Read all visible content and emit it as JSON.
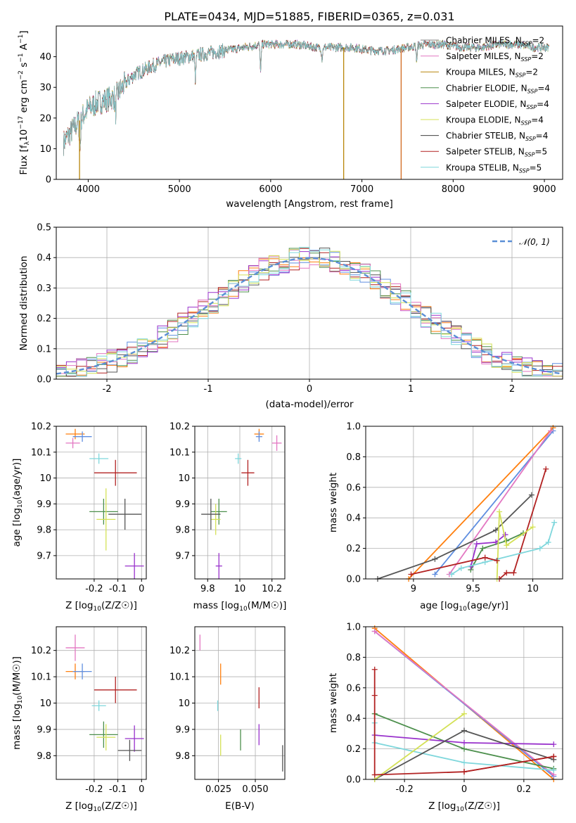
{
  "figure": {
    "title": "PLATE=0434, MJD=51885, FIBERID=0365, z=0.031"
  },
  "colors": [
    "#4f4f4f",
    "#e377c2",
    "#d2691e",
    "#4c8f4c",
    "#9932cc",
    "#d4e157",
    "#555555",
    "#b22222",
    "#7fd7dc",
    "#5f8ee0",
    "#ff7f0e"
  ],
  "legend_spectrum": [
    {
      "pre": "Chabrier MILES, N",
      "sub": "SSP",
      "post": "=2",
      "color": "#808080"
    },
    {
      "pre": "Salpeter MILES, N",
      "sub": "SSP",
      "post": "=2",
      "color": "#e377c2"
    },
    {
      "pre": "Kroupa MILES, N",
      "sub": "SSP",
      "post": "=2",
      "color": "#b8860b"
    },
    {
      "pre": "Chabrier ELODIE, N",
      "sub": "SSP",
      "post": "=4",
      "color": "#4c8f4c"
    },
    {
      "pre": "Salpeter ELODIE, N",
      "sub": "SSP",
      "post": "=4",
      "color": "#9932cc"
    },
    {
      "pre": "Kroupa ELODIE, N",
      "sub": "SSP",
      "post": "=4",
      "color": "#d4e157"
    },
    {
      "pre": "Chabrier STELIB, N",
      "sub": "SSP",
      "post": "=4",
      "color": "#404040"
    },
    {
      "pre": "Salpeter STELIB, N",
      "sub": "SSP",
      "post": "=5",
      "color": "#b22222"
    },
    {
      "pre": "Kroupa STELIB, N",
      "sub": "SSP",
      "post": "=5",
      "color": "#7fd7dc"
    }
  ],
  "legend_hist": {
    "label": "𝒩(0, 1)",
    "color": "#5b8fd6"
  },
  "chart_data": [
    {
      "id": "spectrum",
      "type": "line",
      "xlabel": "wavelength [Angstrom, rest frame]",
      "ylabel": "Flux [f_λ 10^-17 erg cm^-2 s^-1 A^-1]",
      "xlim": [
        3650,
        9200
      ],
      "ylim": [
        0,
        50
      ],
      "xticks": [
        4000,
        5000,
        6000,
        7000,
        8000,
        9000
      ],
      "yticks": [
        0,
        10,
        20,
        30,
        40
      ],
      "continuum": [
        [
          3730,
          12
        ],
        [
          3800,
          15
        ],
        [
          3900,
          19
        ],
        [
          4000,
          23
        ],
        [
          4100,
          25
        ],
        [
          4200,
          26
        ],
        [
          4300,
          27
        ],
        [
          4400,
          31
        ],
        [
          4500,
          34
        ],
        [
          4700,
          37
        ],
        [
          4900,
          39
        ],
        [
          5100,
          40
        ],
        [
          5300,
          41
        ],
        [
          5500,
          42
        ],
        [
          5700,
          43
        ],
        [
          5900,
          44
        ],
        [
          6100,
          44
        ],
        [
          6300,
          44
        ],
        [
          6500,
          43
        ],
        [
          6700,
          43
        ],
        [
          6900,
          43
        ],
        [
          7100,
          42
        ],
        [
          7300,
          42
        ],
        [
          7500,
          43
        ],
        [
          7700,
          44
        ],
        [
          7900,
          44
        ],
        [
          8100,
          43
        ],
        [
          8300,
          43
        ],
        [
          8500,
          44
        ],
        [
          8700,
          44
        ],
        [
          8900,
          43
        ],
        [
          9050,
          43
        ]
      ],
      "dips": [
        [
          3910,
          10
        ],
        [
          4300,
          6
        ],
        [
          5175,
          8
        ],
        [
          5890,
          9
        ],
        [
          6563,
          4
        ],
        [
          7600,
          5
        ]
      ],
      "spikes": [
        {
          "x": 3905,
          "color": "#b8860b"
        },
        {
          "x": 6800,
          "color": "#b8860b"
        },
        {
          "x": 7430,
          "color": "#d2691e"
        }
      ]
    },
    {
      "id": "residuals",
      "type": "histogram",
      "xlabel": "(data-model)/error",
      "ylabel": "Normed distribution",
      "xlim": [
        -2.5,
        2.5
      ],
      "ylim": [
        0,
        0.5
      ],
      "xticks": [
        -2,
        -1,
        0,
        1,
        2
      ],
      "yticks": [
        0.0,
        0.1,
        0.2,
        0.3,
        0.4,
        0.5
      ],
      "bin_width": 0.1,
      "series_count": 9
    },
    {
      "id": "age_vs_z",
      "type": "errorbar",
      "xlabel": "Z [log10(Z/Z☉)]",
      "ylabel": "age  [log10(age/yr)]",
      "xlim": [
        -0.36,
        0.02
      ],
      "ylim": [
        9.61,
        10.2
      ],
      "xticks": [
        -0.2,
        -0.1,
        0.0
      ],
      "yticks": [
        9.7,
        9.8,
        9.9,
        10.0,
        10.1,
        10.2
      ],
      "points": [
        {
          "x": -0.28,
          "y": 10.17,
          "xerr": 0.04,
          "yerr": 0.02,
          "c": "#ff7f0e"
        },
        {
          "x": -0.29,
          "y": 10.135,
          "xerr": 0.03,
          "yerr": 0.02,
          "c": "#e377c2"
        },
        {
          "x": -0.25,
          "y": 10.16,
          "xerr": 0.04,
          "yerr": 0.02,
          "c": "#5f8ee0"
        },
        {
          "x": -0.18,
          "y": 10.075,
          "xerr": 0.04,
          "yerr": 0.02,
          "c": "#7fd7dc"
        },
        {
          "x": -0.11,
          "y": 10.02,
          "xerr": 0.09,
          "yerr": 0.05,
          "c": "#b22222"
        },
        {
          "x": -0.16,
          "y": 9.87,
          "xerr": 0.06,
          "yerr": 0.05,
          "c": "#4c8f4c"
        },
        {
          "x": -0.15,
          "y": 9.84,
          "xerr": 0.04,
          "yerr": 0.12,
          "c": "#d4e157"
        },
        {
          "x": -0.07,
          "y": 9.86,
          "xerr": 0.07,
          "yerr": 0.06,
          "c": "#555555"
        },
        {
          "x": -0.03,
          "y": 9.66,
          "xerr": 0.04,
          "yerr": 0.05,
          "c": "#9932cc"
        }
      ]
    },
    {
      "id": "age_vs_mass",
      "type": "errorbar",
      "xlabel": "mass [log10(M/M☉)]",
      "ylabel": "",
      "xlim": [
        9.72,
        10.28
      ],
      "ylim": [
        9.61,
        10.2
      ],
      "xticks": [
        9.8,
        10.0,
        10.2
      ],
      "yticks": [
        9.7,
        9.8,
        9.9,
        10.0,
        10.1,
        10.2
      ],
      "points": [
        {
          "x": 10.12,
          "y": 10.17,
          "xerr": 0.03,
          "yerr": 0.02,
          "c": "#ff7f0e"
        },
        {
          "x": 10.23,
          "y": 10.135,
          "xerr": 0.03,
          "yerr": 0.03,
          "c": "#e377c2"
        },
        {
          "x": 10.12,
          "y": 10.16,
          "xerr": 0.02,
          "yerr": 0.02,
          "c": "#5f8ee0"
        },
        {
          "x": 9.99,
          "y": 10.075,
          "xerr": 0.02,
          "yerr": 0.02,
          "c": "#7fd7dc"
        },
        {
          "x": 10.05,
          "y": 10.02,
          "xerr": 0.04,
          "yerr": 0.05,
          "c": "#b22222"
        },
        {
          "x": 9.87,
          "y": 9.87,
          "xerr": 0.05,
          "yerr": 0.05,
          "c": "#4c8f4c"
        },
        {
          "x": 9.85,
          "y": 9.84,
          "xerr": 0.03,
          "yerr": 0.06,
          "c": "#d4e157"
        },
        {
          "x": 9.82,
          "y": 9.86,
          "xerr": 0.06,
          "yerr": 0.06,
          "c": "#555555"
        },
        {
          "x": 9.87,
          "y": 9.66,
          "xerr": 0.02,
          "yerr": 0.05,
          "c": "#9932cc"
        }
      ]
    },
    {
      "id": "weight_vs_age",
      "type": "line",
      "xlabel": "age  [log10(age/yr)]",
      "ylabel": "mass weight",
      "xlim": [
        8.6,
        10.25
      ],
      "ylim": [
        0,
        1.0
      ],
      "xticks": [
        9.0,
        9.5,
        10.0
      ],
      "yticks": [
        0.0,
        0.2,
        0.4,
        0.6,
        0.8,
        1.0
      ],
      "series": [
        {
          "c": "#ff7f0e",
          "x": [
            8.96,
            10.17
          ],
          "y": [
            0.0,
            0.99
          ]
        },
        {
          "c": "#5f8ee0",
          "x": [
            9.18,
            10.17
          ],
          "y": [
            0.03,
            0.97
          ]
        },
        {
          "c": "#e377c2",
          "x": [
            9.3,
            10.15
          ],
          "y": [
            0.03,
            0.97
          ]
        },
        {
          "c": "#b22222",
          "x": [
            9.72,
            9.78,
            9.84,
            10.11
          ],
          "y": [
            0.0,
            0.04,
            0.04,
            0.72
          ]
        },
        {
          "c": "#555555",
          "x": [
            8.7,
            9.18,
            9.69,
            9.99
          ],
          "y": [
            0.0,
            0.13,
            0.32,
            0.55
          ]
        },
        {
          "c": "#4c8f4c",
          "x": [
            9.48,
            9.58,
            9.78,
            9.92
          ],
          "y": [
            0.06,
            0.2,
            0.25,
            0.3
          ]
        },
        {
          "c": "#9932cc",
          "x": [
            9.48,
            9.53,
            9.69,
            9.77
          ],
          "y": [
            0.08,
            0.23,
            0.24,
            0.29
          ]
        },
        {
          "c": "#d4e157",
          "x": [
            9.7,
            9.72,
            9.78,
            10.0
          ],
          "y": [
            0.0,
            0.44,
            0.22,
            0.34
          ]
        },
        {
          "c": "#7fd7dc",
          "x": [
            9.32,
            9.4,
            9.6,
            10.06,
            10.13,
            10.18
          ],
          "y": [
            0.03,
            0.07,
            0.11,
            0.2,
            0.24,
            0.37
          ]
        },
        {
          "c": "#b22222",
          "x": [
            8.98,
            9.6,
            9.7
          ],
          "y": [
            0.03,
            0.14,
            0.12
          ]
        }
      ]
    },
    {
      "id": "mass_vs_z",
      "type": "errorbar",
      "xlabel": "Z [log10(Z/Z☉)]",
      "ylabel": "mass [log10(M/M☉)]",
      "xlim": [
        -0.36,
        0.02
      ],
      "ylim": [
        9.71,
        10.29
      ],
      "xticks": [
        -0.2,
        -0.1,
        0.0
      ],
      "yticks": [
        9.8,
        9.9,
        10.0,
        10.1,
        10.2
      ],
      "points": [
        {
          "x": -0.28,
          "y": 10.21,
          "xerr": 0.04,
          "yerr": 0.05,
          "c": "#e377c2"
        },
        {
          "x": -0.28,
          "y": 10.12,
          "xerr": 0.04,
          "yerr": 0.03,
          "c": "#ff7f0e"
        },
        {
          "x": -0.25,
          "y": 10.12,
          "xerr": 0.04,
          "yerr": 0.03,
          "c": "#5f8ee0"
        },
        {
          "x": -0.18,
          "y": 9.99,
          "xerr": 0.03,
          "yerr": 0.02,
          "c": "#7fd7dc"
        },
        {
          "x": -0.11,
          "y": 10.05,
          "xerr": 0.09,
          "yerr": 0.05,
          "c": "#b22222"
        },
        {
          "x": -0.16,
          "y": 9.88,
          "xerr": 0.06,
          "yerr": 0.05,
          "c": "#4c8f4c"
        },
        {
          "x": -0.15,
          "y": 9.87,
          "xerr": 0.04,
          "yerr": 0.05,
          "c": "#d4e157"
        },
        {
          "x": -0.03,
          "y": 9.865,
          "xerr": 0.04,
          "yerr": 0.05,
          "c": "#9932cc"
        },
        {
          "x": -0.05,
          "y": 9.82,
          "xerr": 0.05,
          "yerr": 0.04,
          "c": "#555555"
        }
      ]
    },
    {
      "id": "mass_vs_ebv",
      "type": "errorbar",
      "xlabel": "E(B-V)",
      "ylabel": "",
      "xlim": [
        0.009,
        0.07
      ],
      "ylim": [
        9.71,
        10.29
      ],
      "xticks": [
        0.025,
        0.05
      ],
      "xticklabels": [
        "0.025",
        "0.050"
      ],
      "yticks": [
        9.8,
        9.9,
        10.0,
        10.1,
        10.2
      ],
      "points": [
        {
          "x": 0.0125,
          "y": 10.23,
          "xerr": 0.0,
          "yerr": 0.03,
          "c": "#e377c2"
        },
        {
          "x": 0.0265,
          "y": 10.11,
          "xerr": 0.0,
          "yerr": 0.04,
          "c": "#ff7f0e"
        },
        {
          "x": 0.0245,
          "y": 9.99,
          "xerr": 0.0,
          "yerr": 0.02,
          "c": "#7fd7dc"
        },
        {
          "x": 0.0525,
          "y": 10.02,
          "xerr": 0.0,
          "yerr": 0.04,
          "c": "#b22222"
        },
        {
          "x": 0.0265,
          "y": 9.84,
          "xerr": 0.0,
          "yerr": 0.04,
          "c": "#d4e157"
        },
        {
          "x": 0.04,
          "y": 9.86,
          "xerr": 0.0,
          "yerr": 0.04,
          "c": "#4c8f4c"
        },
        {
          "x": 0.0525,
          "y": 9.88,
          "xerr": 0.0,
          "yerr": 0.04,
          "c": "#9932cc"
        },
        {
          "x": 0.0685,
          "y": 9.79,
          "xerr": 0.0,
          "yerr": 0.05,
          "c": "#555555"
        }
      ]
    },
    {
      "id": "weight_vs_z",
      "type": "line",
      "xlabel": "Z [log10(Z/Z☉)]",
      "ylabel": "mass weight",
      "xlim": [
        -0.33,
        0.33
      ],
      "ylim": [
        0,
        1.0
      ],
      "xticks": [
        -0.2,
        0.0,
        0.2
      ],
      "yticks": [
        0.0,
        0.2,
        0.4,
        0.6,
        0.8,
        1.0
      ],
      "series": [
        {
          "c": "#ff7f0e",
          "x": [
            -0.3,
            0.3
          ],
          "y": [
            0.99,
            0.0
          ]
        },
        {
          "c": "#5f8ee0",
          "x": [
            -0.3,
            0.3
          ],
          "y": [
            0.97,
            0.02
          ]
        },
        {
          "c": "#e377c2",
          "x": [
            -0.3,
            0.3
          ],
          "y": [
            0.97,
            0.03
          ]
        },
        {
          "c": "#4c8f4c",
          "x": [
            -0.3,
            0.0,
            0.3
          ],
          "y": [
            0.43,
            0.2,
            0.07
          ]
        },
        {
          "c": "#9932cc",
          "x": [
            -0.3,
            0.0,
            0.3
          ],
          "y": [
            0.29,
            0.24,
            0.23
          ]
        },
        {
          "c": "#7fd7dc",
          "x": [
            -0.3,
            -0.3,
            0.0,
            0.3
          ],
          "y": [
            0.37,
            0.24,
            0.11,
            0.06
          ]
        },
        {
          "c": "#555555",
          "x": [
            -0.3,
            0.0,
            0.3
          ],
          "y": [
            0.0,
            0.32,
            0.13
          ]
        },
        {
          "c": "#d4e157",
          "x": [
            -0.3,
            0.0
          ],
          "y": [
            0.0,
            0.43
          ]
        },
        {
          "c": "#b22222",
          "x": [
            -0.3,
            -0.3,
            -0.3,
            0.0,
            0.3
          ],
          "y": [
            0.72,
            0.55,
            0.03,
            0.05,
            0.15
          ]
        },
        {
          "c": "#b22222",
          "x": [
            0.0,
            0.3
          ],
          "y": [
            0.05,
            0.15
          ]
        }
      ]
    }
  ]
}
